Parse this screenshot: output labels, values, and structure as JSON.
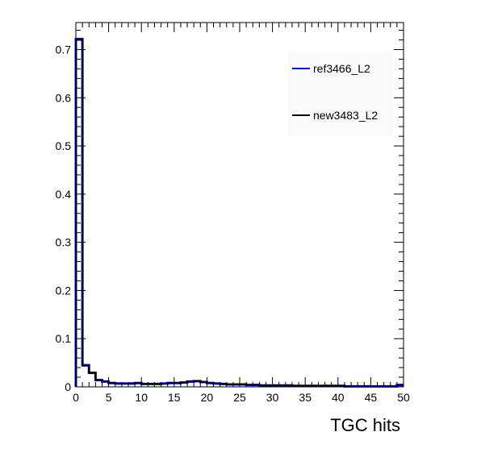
{
  "chart_data": {
    "type": "histogram",
    "xlabel": "TGC hits",
    "ylabel": "",
    "xlim": [
      0,
      50
    ],
    "ylim": [
      0,
      0.756
    ],
    "bin_width": 1,
    "x_ticks": [
      0,
      5,
      10,
      15,
      20,
      25,
      30,
      35,
      40,
      45,
      50
    ],
    "y_ticks": [
      0,
      0.1,
      0.2,
      0.3,
      0.4,
      0.5,
      0.6,
      0.7
    ],
    "x_tick_labels": [
      "0",
      "5",
      "10",
      "15",
      "20",
      "25",
      "30",
      "35",
      "40",
      "45",
      "50"
    ],
    "y_tick_labels": [
      "0",
      "0.1",
      "0.2",
      "0.3",
      "0.4",
      "0.5",
      "0.6",
      "0.7"
    ],
    "legend_position": "top-right",
    "series": [
      {
        "name": "ref3466_L2",
        "color": "#0000ff",
        "values": [
          0.722,
          0.045,
          0.029,
          0.014,
          0.011,
          0.008,
          0.007,
          0.007,
          0.007,
          0.008,
          0.006,
          0.006,
          0.006,
          0.007,
          0.008,
          0.008,
          0.009,
          0.011,
          0.012,
          0.01,
          0.008,
          0.007,
          0.006,
          0.005,
          0.005,
          0.005,
          0.004,
          0.004,
          0.003,
          0.003,
          0.003,
          0.003,
          0.003,
          0.002,
          0.002,
          0.002,
          0.002,
          0.002,
          0.002,
          0.002,
          0.002,
          0.001,
          0.001,
          0.001,
          0.001,
          0.001,
          0.001,
          0.001,
          0.001,
          0.004
        ]
      },
      {
        "name": "new3483_L2",
        "color": "#000000",
        "values": [
          0.72,
          0.044,
          0.029,
          0.014,
          0.011,
          0.008,
          0.007,
          0.007,
          0.007,
          0.008,
          0.006,
          0.006,
          0.006,
          0.007,
          0.008,
          0.008,
          0.009,
          0.011,
          0.012,
          0.01,
          0.008,
          0.007,
          0.006,
          0.005,
          0.005,
          0.005,
          0.004,
          0.004,
          0.003,
          0.003,
          0.003,
          0.003,
          0.003,
          0.002,
          0.002,
          0.002,
          0.002,
          0.002,
          0.002,
          0.002,
          0.002,
          0.001,
          0.001,
          0.001,
          0.001,
          0.001,
          0.001,
          0.001,
          0.001,
          0.003
        ]
      }
    ]
  }
}
